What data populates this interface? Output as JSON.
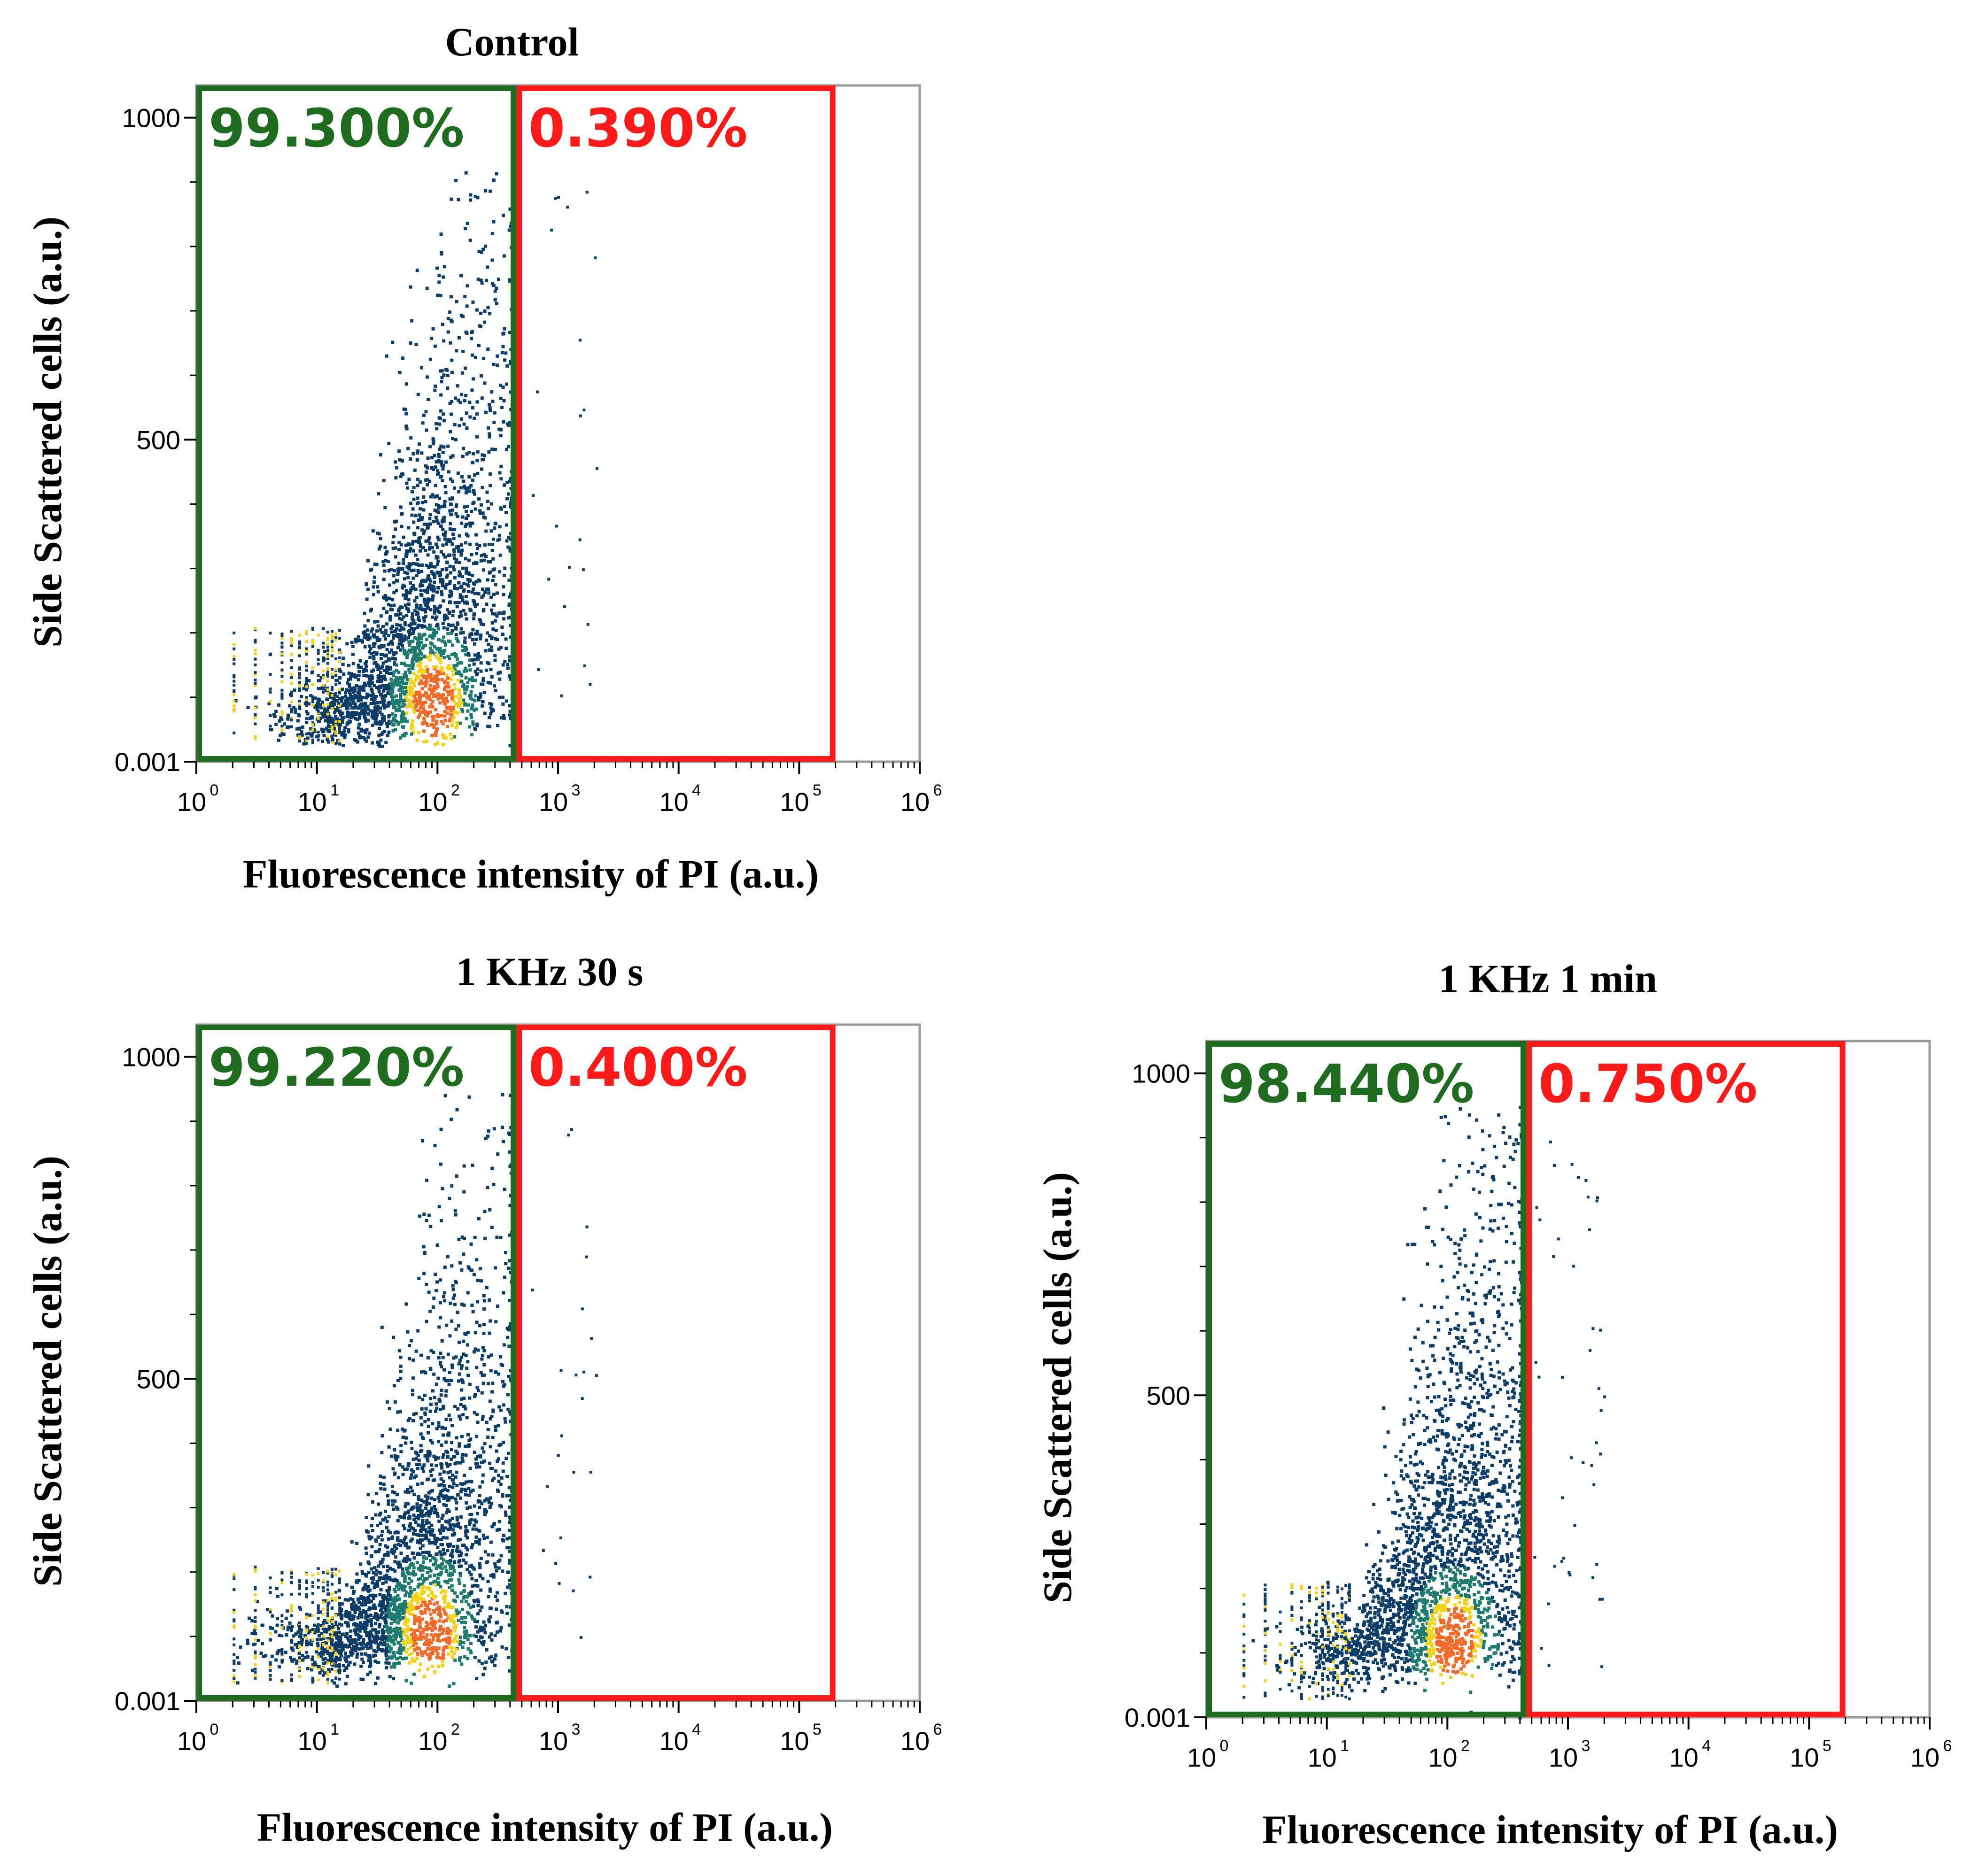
{
  "colors": {
    "live_gate": "#1f6b1f",
    "dead_gate": "#ff1a1a",
    "axis": "#9a9a9a",
    "density_low": "#0d3d66",
    "density_mid": "#1f7a6e",
    "density_high": "#f2d21b",
    "density_peak": "#f06a2a"
  },
  "chart_data": [
    {
      "type": "scatter",
      "subtype": "flow-cytometry density dot plot",
      "title": "Control",
      "xlabel": "Fluorescence intensity of PI (a.u.)",
      "ylabel": "Side Scattered cells (a.u.)",
      "xscale": "log",
      "xlim": [
        1,
        1000000
      ],
      "ylim": [
        0.001,
        1050
      ],
      "x_ticks": [
        {
          "base": "10",
          "exp": "0",
          "value": 1
        },
        {
          "base": "10",
          "exp": "1",
          "value": 10
        },
        {
          "base": "10",
          "exp": "2",
          "value": 100
        },
        {
          "base": "10",
          "exp": "3",
          "value": 1000
        },
        {
          "base": "10",
          "exp": "4",
          "value": 10000
        },
        {
          "base": "10",
          "exp": "5",
          "value": 100000
        },
        {
          "base": "10",
          "exp": "6",
          "value": 1000000
        }
      ],
      "y_ticks": [
        {
          "label": "0.001",
          "value": 0.001
        },
        {
          "label": "500",
          "value": 500
        },
        {
          "label": "1000",
          "value": 1000
        }
      ],
      "gates": [
        {
          "name": "live",
          "label": "99.300%",
          "x_range": [
            1,
            450
          ],
          "y_range": [
            0.001,
            1050
          ],
          "color": "#1f6b1f"
        },
        {
          "name": "dead",
          "label": "0.390%",
          "x_range": [
            450,
            200000
          ],
          "y_range": [
            0.001,
            1050
          ],
          "color": "#ff1a1a"
        }
      ],
      "density_center": {
        "x": 90,
        "y": 95
      }
    },
    {
      "type": "scatter",
      "subtype": "flow-cytometry density dot plot",
      "title": "1 KHz 30 s",
      "xlabel": "Fluorescence intensity of PI (a.u.)",
      "ylabel": "Side Scattered cells (a.u.)",
      "xscale": "log",
      "xlim": [
        1,
        1000000
      ],
      "ylim": [
        0.001,
        1050
      ],
      "x_ticks": [
        {
          "base": "10",
          "exp": "0",
          "value": 1
        },
        {
          "base": "10",
          "exp": "1",
          "value": 10
        },
        {
          "base": "10",
          "exp": "2",
          "value": 100
        },
        {
          "base": "10",
          "exp": "3",
          "value": 1000
        },
        {
          "base": "10",
          "exp": "4",
          "value": 10000
        },
        {
          "base": "10",
          "exp": "5",
          "value": 100000
        },
        {
          "base": "10",
          "exp": "6",
          "value": 1000000
        }
      ],
      "y_ticks": [
        {
          "label": "0.001",
          "value": 0.001
        },
        {
          "label": "500",
          "value": 500
        },
        {
          "label": "1000",
          "value": 1000
        }
      ],
      "gates": [
        {
          "name": "live",
          "label": "99.220%",
          "x_range": [
            1,
            450
          ],
          "y_range": [
            0.001,
            1050
          ],
          "color": "#1f6b1f"
        },
        {
          "name": "dead",
          "label": "0.400%",
          "x_range": [
            450,
            200000
          ],
          "y_range": [
            0.001,
            1050
          ],
          "color": "#ff1a1a"
        }
      ],
      "density_center": {
        "x": 85,
        "y": 110
      }
    },
    {
      "type": "scatter",
      "subtype": "flow-cytometry density dot plot",
      "title": "1 KHz 1 min",
      "xlabel": "Fluorescence intensity of PI (a.u.)",
      "ylabel": "Side Scattered cells (a.u.)",
      "xscale": "log",
      "xlim": [
        1,
        1000000
      ],
      "ylim": [
        0.001,
        1050
      ],
      "x_ticks": [
        {
          "base": "10",
          "exp": "0",
          "value": 1
        },
        {
          "base": "10",
          "exp": "1",
          "value": 10
        },
        {
          "base": "10",
          "exp": "2",
          "value": 100
        },
        {
          "base": "10",
          "exp": "3",
          "value": 1000
        },
        {
          "base": "10",
          "exp": "4",
          "value": 10000
        },
        {
          "base": "10",
          "exp": "5",
          "value": 100000
        },
        {
          "base": "10",
          "exp": "6",
          "value": 1000000
        }
      ],
      "y_ticks": [
        {
          "label": "0.001",
          "value": 0.001
        },
        {
          "label": "500",
          "value": 500
        },
        {
          "label": "1000",
          "value": 1000
        }
      ],
      "gates": [
        {
          "name": "live",
          "label": "98.440%",
          "x_range": [
            1,
            450
          ],
          "y_range": [
            0.001,
            1050
          ],
          "color": "#1f6b1f"
        },
        {
          "name": "dead",
          "label": "0.750%",
          "x_range": [
            450,
            200000
          ],
          "y_range": [
            0.001,
            1050
          ],
          "color": "#ff1a1a"
        }
      ],
      "density_center": {
        "x": 110,
        "y": 120
      }
    }
  ]
}
